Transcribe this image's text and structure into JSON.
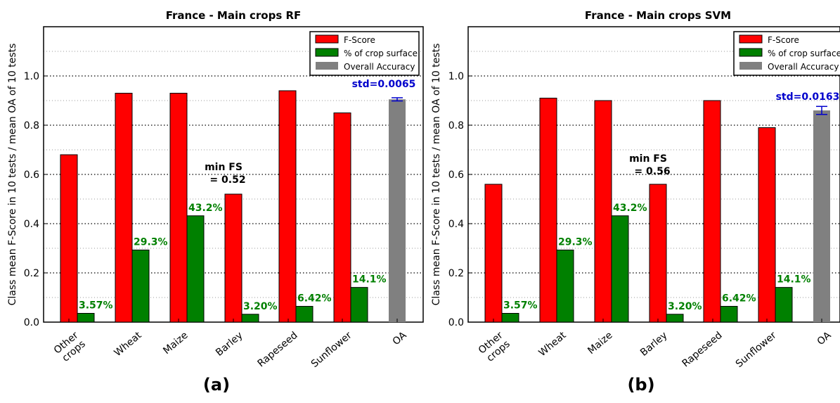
{
  "panels": [
    {
      "panel_label": "(a)",
      "std_label": "std=0.0065",
      "min_fs_line1": "min FS",
      "min_fs_line2": "= 0.52"
    },
    {
      "panel_label": "(b)",
      "std_label": "std=0.0163",
      "min_fs_line1": "min FS",
      "min_fs_line2": "= 0.56"
    }
  ],
  "colors": {
    "fscore": "#ff0000",
    "surface": "#008000",
    "oa": "#808080",
    "pct_label": "#008000",
    "std_label": "#0000cc"
  },
  "chart_data": [
    {
      "type": "bar",
      "title": "France - Main crops RF",
      "ylabel": "Class mean F-Score in 10 tests / mean OA of 10 tests",
      "xlabel": "",
      "ylim": [
        0,
        1.2
      ],
      "yticks": [
        "0.0",
        "0.2",
        "0.4",
        "0.6",
        "0.8",
        "1.0"
      ],
      "grid": true,
      "legend_position": "top-right",
      "categories": [
        [
          "Other",
          "crops"
        ],
        [
          "Wheat"
        ],
        [
          "Maize"
        ],
        [
          "Barley"
        ],
        [
          "Rapeseed"
        ],
        [
          "Sunflower"
        ],
        [
          "OA"
        ]
      ],
      "series": [
        {
          "name": "F-Score",
          "values": [
            0.68,
            0.93,
            0.93,
            0.52,
            0.94,
            0.85,
            null
          ]
        },
        {
          "name": "% of crop surface",
          "values": [
            0.0357,
            0.293,
            0.432,
            0.032,
            0.0642,
            0.141,
            null
          ],
          "labels": [
            "3.57%",
            "29.3%",
            "43.2%",
            "3.20%",
            "6.42%",
            "14.1%",
            null
          ]
        },
        {
          "name": "Overall Accuracy",
          "values": [
            null,
            null,
            null,
            null,
            null,
            null,
            0.905
          ],
          "error": 0.0065
        }
      ]
    },
    {
      "type": "bar",
      "title": "France - Main crops SVM",
      "ylabel": "Class mean F-Score in 10 tests / mean OA of 10 tests",
      "xlabel": "",
      "ylim": [
        0,
        1.2
      ],
      "yticks": [
        "0.0",
        "0.2",
        "0.4",
        "0.6",
        "0.8",
        "1.0"
      ],
      "grid": true,
      "legend_position": "top-right",
      "categories": [
        [
          "Other",
          "crops"
        ],
        [
          "Wheat"
        ],
        [
          "Maize"
        ],
        [
          "Barley"
        ],
        [
          "Rapeseed"
        ],
        [
          "Sunflower"
        ],
        [
          "OA"
        ]
      ],
      "series": [
        {
          "name": "F-Score",
          "values": [
            0.56,
            0.91,
            0.9,
            0.56,
            0.9,
            0.79,
            null
          ]
        },
        {
          "name": "% of crop surface",
          "values": [
            0.0357,
            0.293,
            0.432,
            0.032,
            0.0642,
            0.141,
            null
          ],
          "labels": [
            "3.57%",
            "29.3%",
            "43.2%",
            "3.20%",
            "6.42%",
            "14.1%",
            null
          ]
        },
        {
          "name": "Overall Accuracy",
          "values": [
            null,
            null,
            null,
            null,
            null,
            null,
            0.86
          ],
          "error": 0.0163
        }
      ]
    }
  ]
}
